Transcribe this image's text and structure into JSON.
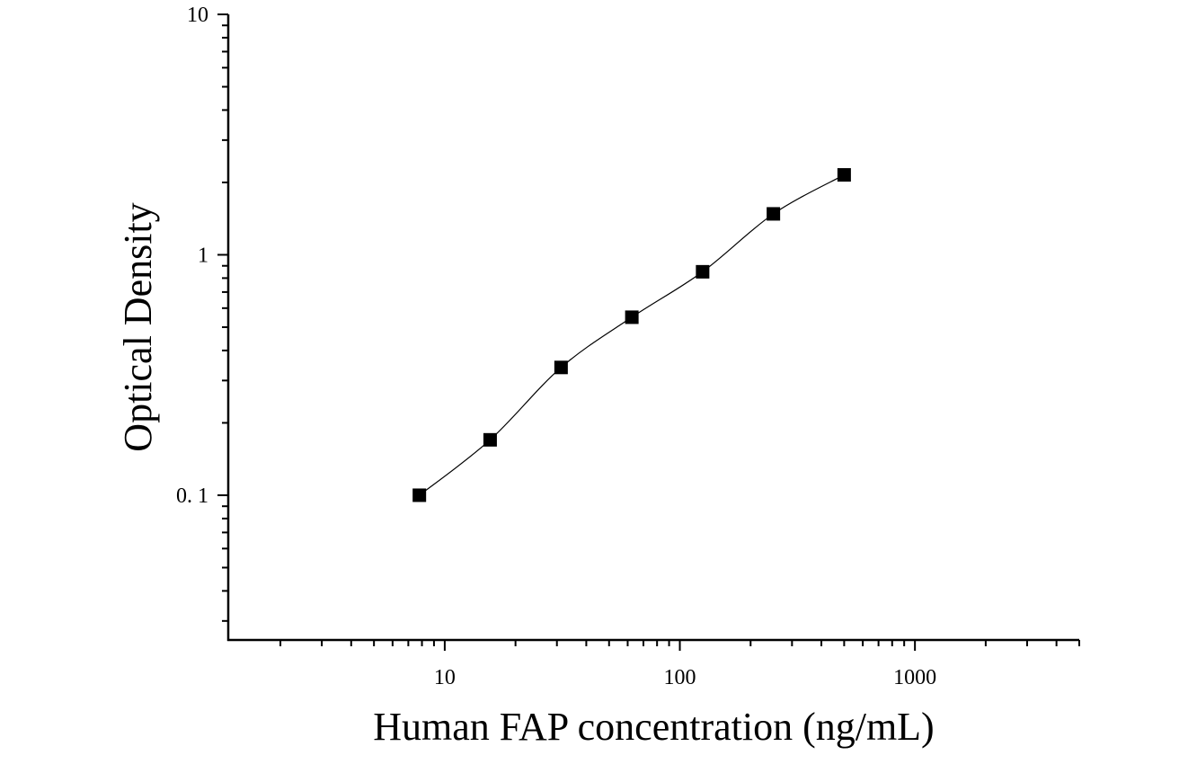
{
  "chart_data": {
    "type": "scatter",
    "title": "",
    "xlabel": "Human FAP concentration (ng/mL)",
    "ylabel": "Optical Density",
    "xscale": "log",
    "yscale": "log",
    "xlim": [
      1.2,
      5000
    ],
    "ylim": [
      0.025,
      10
    ],
    "x_tick_labels": [
      {
        "value": 10,
        "label": "10"
      },
      {
        "value": 100,
        "label": "100"
      },
      {
        "value": 1000,
        "label": "1000"
      }
    ],
    "y_tick_labels": [
      {
        "value": 0.1,
        "label": "0. 1"
      },
      {
        "value": 1,
        "label": "1"
      },
      {
        "value": 10,
        "label": "10"
      }
    ],
    "grid": false,
    "legend": "none",
    "marker": "square",
    "fit_curve": true,
    "series": [
      {
        "x": [
          7.8,
          15.6,
          31.25,
          62.5,
          125,
          250,
          500
        ],
        "y": [
          0.1,
          0.17,
          0.34,
          0.55,
          0.85,
          1.48,
          2.15
        ]
      }
    ],
    "colors": {
      "marker": "#000000",
      "axis": "#000000"
    }
  }
}
